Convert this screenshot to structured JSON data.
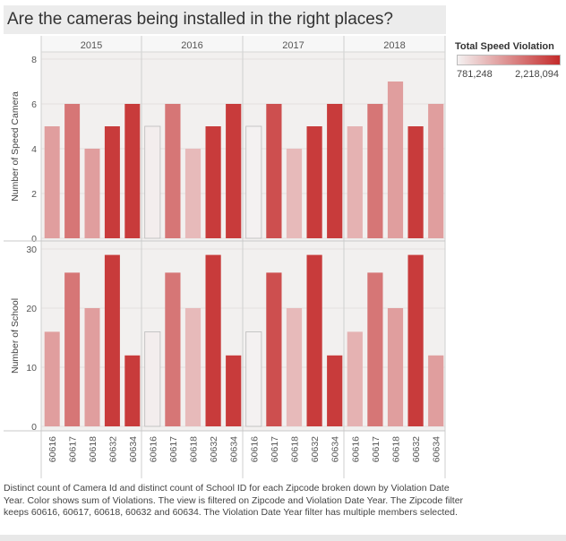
{
  "title": "Are the cameras being installed in the right places?",
  "legend": {
    "title": "Total Speed Violation",
    "min_label": "781,248",
    "max_label": "2,218,094",
    "color_low": "#f4f1f1",
    "color_high": "#c42b2b"
  },
  "caption": "Distinct count of Camera Id and distinct count of School ID for each Zipcode broken down by Violation Date Year.  Color shows sum of Violations. The view is filtered on Zipcode and Violation Date Year. The Zipcode filter keeps 60616, 60617, 60618, 60632 and 60634. The Violation Date Year filter has multiple members selected.",
  "chart_data": {
    "type": "bar",
    "columns": [
      "2015",
      "2016",
      "2017",
      "2018"
    ],
    "categories": [
      "60616",
      "60617",
      "60618",
      "60632",
      "60634"
    ],
    "panels": [
      {
        "ylabel": "Number of Speed Camera",
        "ylim": [
          0,
          8
        ],
        "ticks": [
          0,
          2,
          4,
          6,
          8
        ],
        "values": {
          "2015": [
            5,
            6,
            4,
            5,
            6
          ],
          "2016": [
            5,
            6,
            4,
            5,
            6
          ],
          "2017": [
            5,
            6,
            4,
            5,
            6
          ],
          "2018": [
            5,
            6,
            7,
            5,
            6
          ]
        }
      },
      {
        "ylabel": "Number of School",
        "ylim": [
          0,
          30
        ],
        "ticks": [
          0,
          10,
          20,
          30
        ],
        "values": {
          "2015": [
            16,
            26,
            20,
            29,
            12
          ],
          "2016": [
            16,
            26,
            20,
            29,
            12
          ],
          "2017": [
            16,
            26,
            20,
            29,
            12
          ],
          "2018": [
            16,
            26,
            20,
            29,
            12
          ]
        }
      }
    ],
    "color_levels": {
      "2015": [
        0.42,
        0.62,
        0.42,
        0.92,
        0.92
      ],
      "2016": [
        0.02,
        0.62,
        0.28,
        0.92,
        0.92
      ],
      "2017": [
        0.0,
        0.82,
        0.28,
        0.92,
        0.92
      ],
      "2018": [
        0.32,
        0.62,
        0.42,
        0.92,
        0.42
      ]
    },
    "grid": true
  }
}
